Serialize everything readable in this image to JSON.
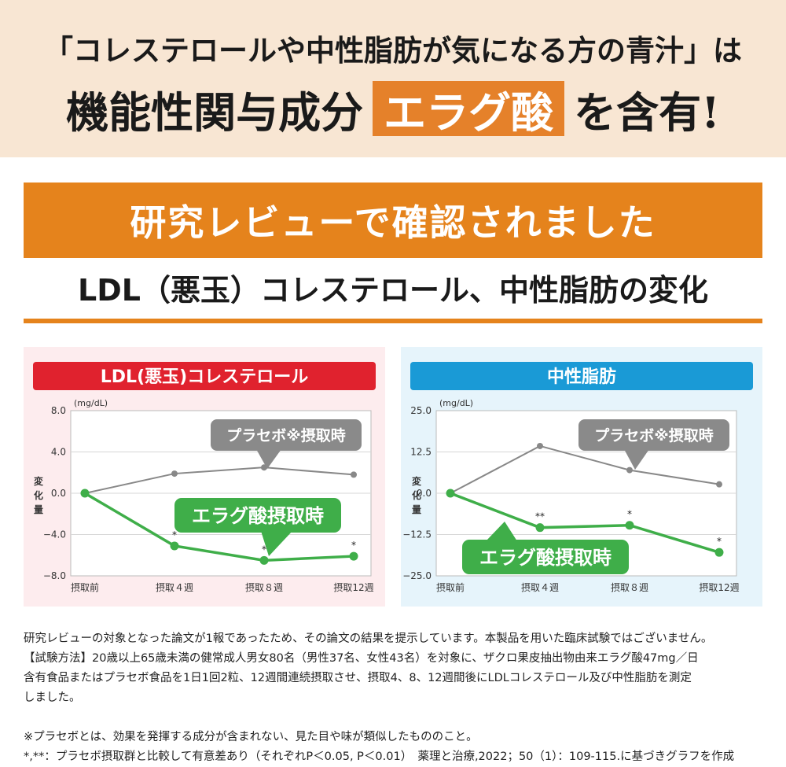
{
  "header": {
    "line1": "「コレステロールや中性脂肪が気になる方の青汁」は",
    "line2_prefix": "機能性関与成分",
    "line2_highlight": "エラグ酸",
    "line2_suffix": "を含有!"
  },
  "banner": {
    "text": "研究レビューで確認されました"
  },
  "subtitle": {
    "text": "LDL（悪玉）コレステロール、中性脂肪の変化"
  },
  "colors": {
    "orange": "#e5831c",
    "green": "#3fae49",
    "gray": "#888888",
    "red": "#e0222e",
    "blue": "#1a9ad6"
  },
  "chart_data": [
    {
      "type": "line",
      "title": "LDL(悪玉)コレステロール",
      "unit": "(mg/dL)",
      "ylabel": "変化量",
      "categories": [
        "摂取前",
        "摂取４週",
        "摂取８週",
        "摂取12週"
      ],
      "ylim": [
        -8.0,
        8.0
      ],
      "yticks": [
        "8.0",
        "4.0",
        "0.0",
        "−4.0",
        "−8.0"
      ],
      "ytick_values": [
        8,
        4,
        0,
        -4,
        -8
      ],
      "series": [
        {
          "name": "プラセボ※摂取時",
          "values": [
            0,
            1.9,
            2.5,
            1.8
          ],
          "markers": [
            "",
            "",
            "",
            ""
          ]
        },
        {
          "name": "エラグ酸摂取時",
          "values": [
            0,
            -5.1,
            -6.5,
            -6.1
          ],
          "markers": [
            "",
            "*",
            "*",
            "*"
          ]
        }
      ]
    },
    {
      "type": "line",
      "title": "中性脂肪",
      "unit": "(mg/dL)",
      "ylabel": "変化量",
      "categories": [
        "摂取前",
        "摂取４週",
        "摂取８週",
        "摂取12週"
      ],
      "ylim": [
        -25.0,
        25.0
      ],
      "yticks": [
        "25.0",
        "12.5",
        "0.0",
        "−12.5",
        "−25.0"
      ],
      "ytick_values": [
        25,
        12.5,
        0,
        -12.5,
        -25
      ],
      "series": [
        {
          "name": "プラセボ※摂取時",
          "values": [
            0,
            14.3,
            7.0,
            2.7
          ],
          "markers": [
            "",
            "",
            "",
            ""
          ]
        },
        {
          "name": "エラグ酸摂取時",
          "values": [
            0,
            -10.4,
            -9.7,
            -17.9
          ],
          "markers": [
            "",
            "**",
            "*",
            "*"
          ]
        }
      ]
    }
  ],
  "notes": {
    "p1": "研究レビューの対象となった論文が1報であったため、その論文の結果を提示しています。本製品を用いた臨床試験ではございません。",
    "p2": "【試験方法】20歳以上65歳未満の健常成人男女80名（男性37名、女性43名）を対象に、ザクロ果皮抽出物由来エラグ酸47mg／日",
    "p3": "含有食品またはプラセボ食品を1日1回2粒、12週間連続摂取させ、摂取4、8、12週間後にLDLコレステロール及び中性脂肪を測定",
    "p4": "しました。",
    "p5": "※プラセボとは、効果を発揮する成分が含まれない、見た目や味が類似したもののこと。",
    "p6": "*,**：プラセボ摂取群と比較して有意差あり（それぞれP＜0.05, P＜0.01）　薬理と治療,2022；50（1）：109-115.に基づきグラフを作成"
  }
}
